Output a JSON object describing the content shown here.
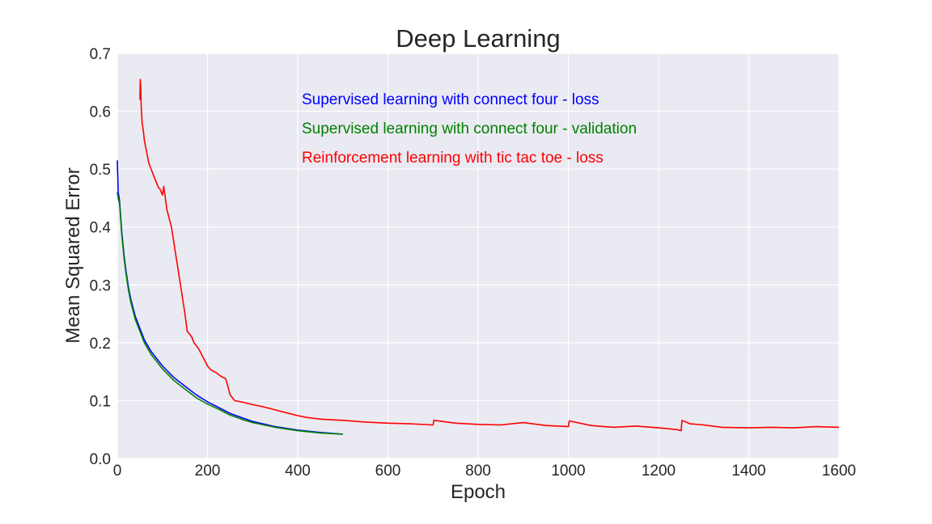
{
  "chart_data": {
    "type": "line",
    "title": "Deep Learning",
    "xlabel": "Epoch",
    "ylabel": "Mean Squared Error",
    "xlim": [
      0,
      1600
    ],
    "ylim": [
      0,
      0.7
    ],
    "xticks": [
      "0",
      "200",
      "400",
      "600",
      "800",
      "1000",
      "1200",
      "1400",
      "1600"
    ],
    "yticks": [
      "0.0",
      "0.1",
      "0.2",
      "0.3",
      "0.4",
      "0.5",
      "0.6",
      "0.7"
    ],
    "grid": true,
    "background": "#eaeaf2",
    "legend_position": "upper-center",
    "series": [
      {
        "name": "Supervised learning with connect four - loss",
        "color": "#0000ff",
        "x": [
          0,
          2,
          5,
          10,
          15,
          20,
          25,
          30,
          40,
          50,
          60,
          75,
          100,
          125,
          150,
          175,
          200,
          225,
          250,
          275,
          300,
          350,
          400,
          450,
          500
        ],
        "y": [
          0.515,
          0.46,
          0.445,
          0.39,
          0.35,
          0.32,
          0.295,
          0.275,
          0.245,
          0.225,
          0.205,
          0.185,
          0.16,
          0.14,
          0.125,
          0.11,
          0.098,
          0.088,
          0.078,
          0.071,
          0.064,
          0.055,
          0.049,
          0.045,
          0.042
        ]
      },
      {
        "name": "Supervised learning with connect four - validation",
        "color": "#008000",
        "x": [
          0,
          2,
          5,
          10,
          15,
          20,
          25,
          30,
          40,
          50,
          60,
          75,
          100,
          125,
          150,
          175,
          200,
          225,
          250,
          275,
          300,
          350,
          400,
          450,
          500
        ],
        "y": [
          0.46,
          0.45,
          0.44,
          0.385,
          0.345,
          0.315,
          0.29,
          0.27,
          0.24,
          0.22,
          0.2,
          0.18,
          0.155,
          0.135,
          0.12,
          0.105,
          0.094,
          0.085,
          0.075,
          0.068,
          0.062,
          0.054,
          0.048,
          0.044,
          0.042
        ]
      },
      {
        "name": "Reinforcement learning with tic tac toe - loss",
        "color": "#ff0000",
        "x": [
          50,
          51,
          52,
          53,
          55,
          58,
          60,
          65,
          70,
          80,
          90,
          95,
          100,
          103,
          110,
          120,
          130,
          140,
          150,
          155,
          160,
          165,
          170,
          180,
          190,
          200,
          205,
          210,
          220,
          230,
          240,
          245,
          250,
          255,
          260,
          280,
          300,
          320,
          340,
          360,
          380,
          400,
          420,
          450,
          500,
          550,
          600,
          650,
          700,
          702,
          750,
          800,
          850,
          900,
          950,
          1000,
          1002,
          1050,
          1100,
          1150,
          1200,
          1240,
          1250,
          1252,
          1270,
          1300,
          1320,
          1340,
          1400,
          1450,
          1500,
          1550,
          1600
        ],
        "y": [
          0.62,
          0.655,
          0.64,
          0.61,
          0.58,
          0.565,
          0.55,
          0.53,
          0.51,
          0.49,
          0.47,
          0.465,
          0.455,
          0.47,
          0.43,
          0.4,
          0.35,
          0.3,
          0.25,
          0.22,
          0.215,
          0.21,
          0.2,
          0.19,
          0.175,
          0.16,
          0.155,
          0.152,
          0.148,
          0.142,
          0.138,
          0.125,
          0.11,
          0.105,
          0.1,
          0.097,
          0.093,
          0.09,
          0.086,
          0.082,
          0.078,
          0.074,
          0.071,
          0.068,
          0.066,
          0.063,
          0.061,
          0.06,
          0.058,
          0.066,
          0.061,
          0.059,
          0.058,
          0.062,
          0.057,
          0.055,
          0.065,
          0.057,
          0.054,
          0.056,
          0.053,
          0.05,
          0.048,
          0.066,
          0.06,
          0.058,
          0.056,
          0.054,
          0.053,
          0.054,
          0.053,
          0.055,
          0.054
        ]
      }
    ]
  }
}
